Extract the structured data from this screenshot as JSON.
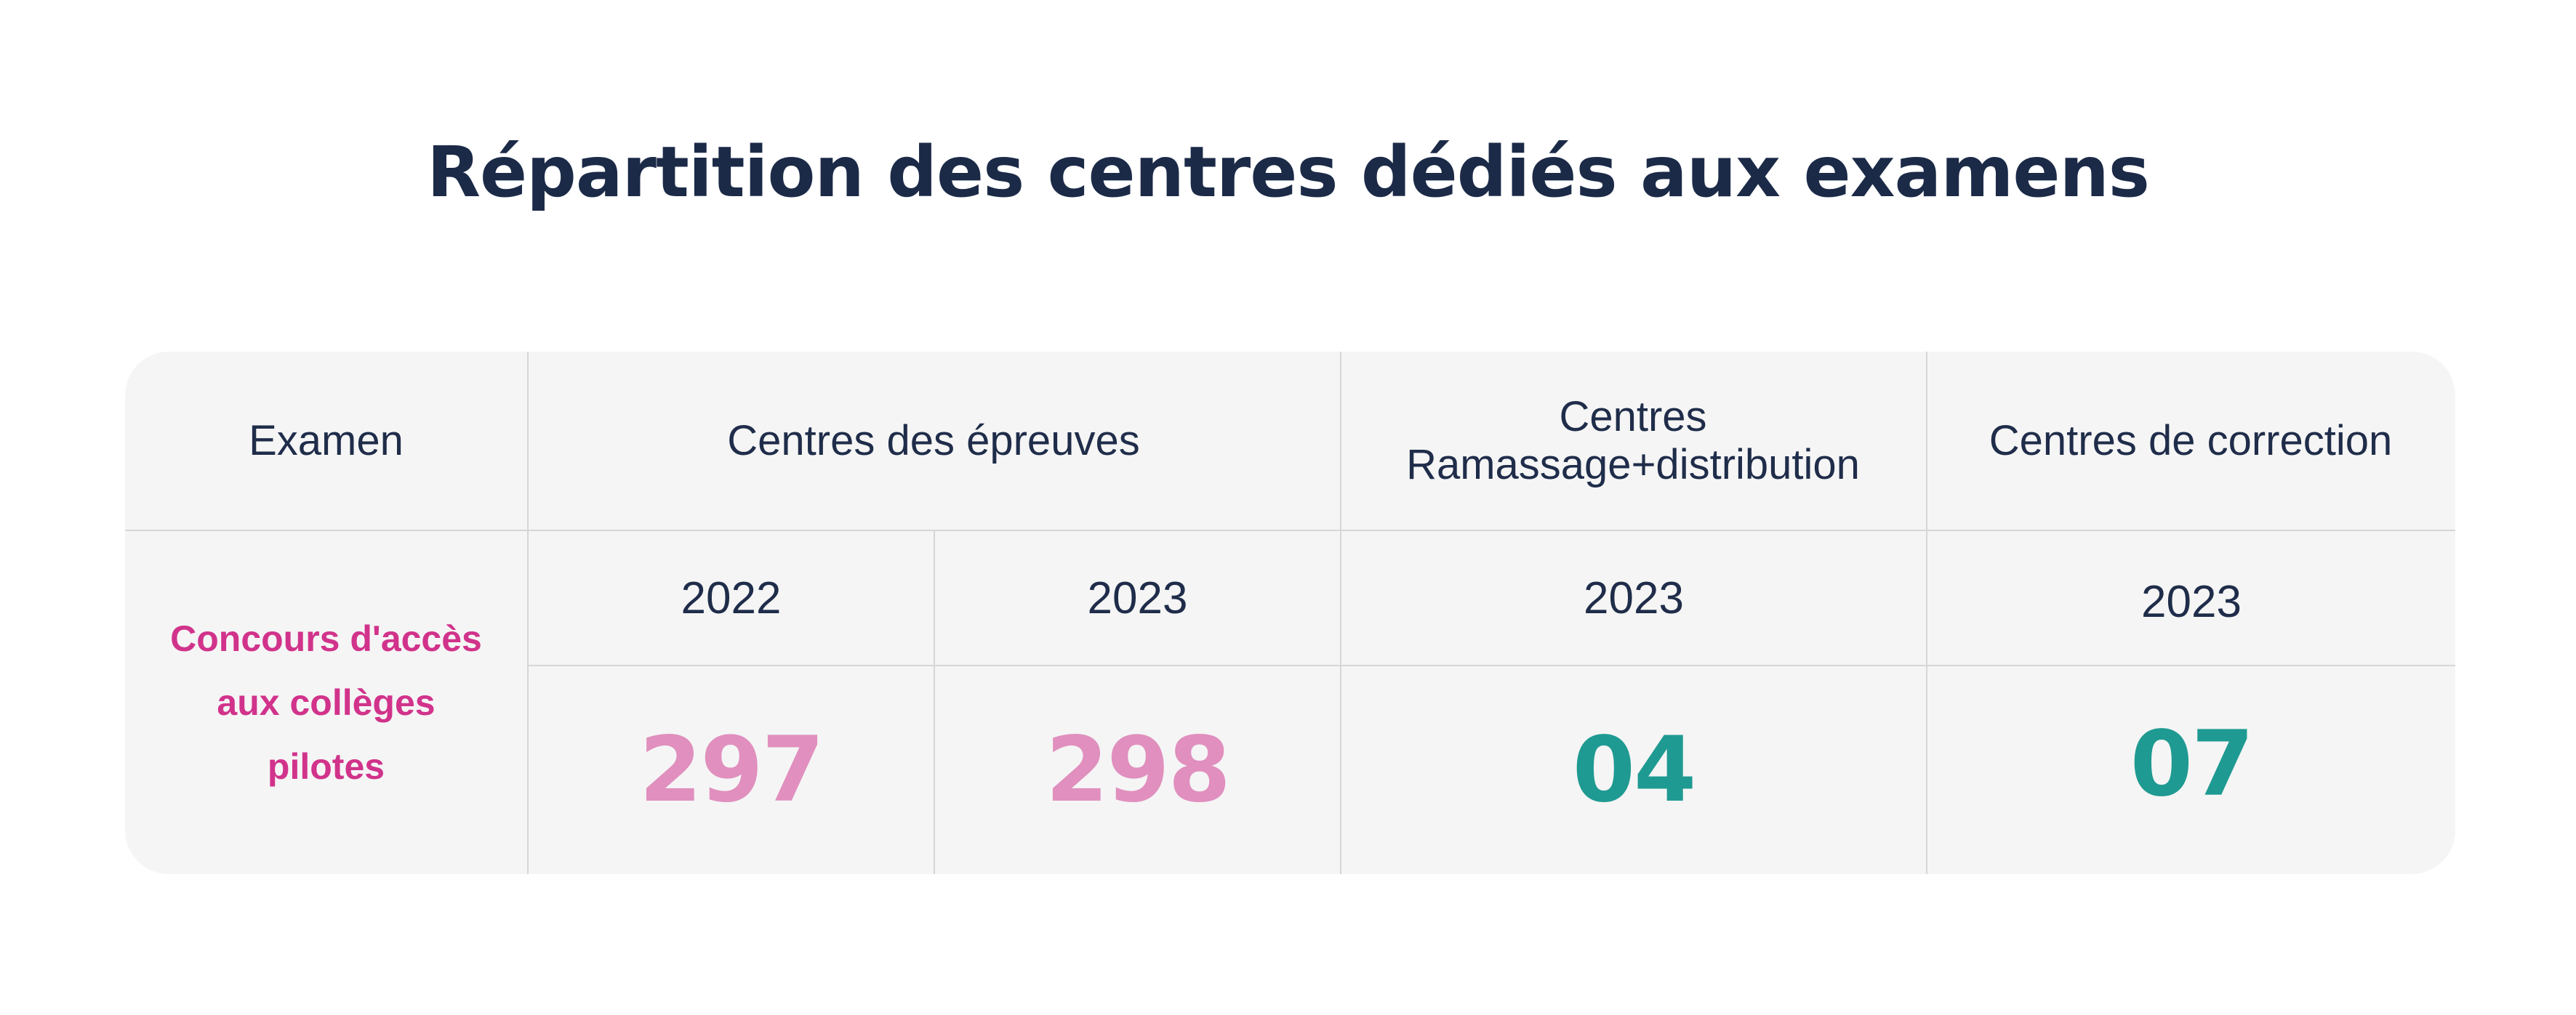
{
  "title": "Répartition des centres dédiés aux examens",
  "table": {
    "headers": {
      "exam": "Examen",
      "epreuves": "Centres des épreuves",
      "ramassage_line1": "Centres",
      "ramassage_line2": "Ramassage+distribution",
      "correction": "Centres de correction"
    },
    "years": {
      "epreuves_a": "2022",
      "epreuves_b": "2023",
      "ramassage": "2023",
      "correction": "2023"
    },
    "row": {
      "exam_line1": "Concours d'accès",
      "exam_line2": "aux collèges pilotes",
      "epreuves_2022": "297",
      "epreuves_2023": "298",
      "ramassage_2023": "04",
      "correction_2023": "07"
    }
  },
  "colors": {
    "title": "#1b2a47",
    "exam_label": "#d1338b",
    "epreuves_values": "#e08fbe",
    "other_values": "#1f9a92",
    "table_background": "#f5f5f5"
  }
}
